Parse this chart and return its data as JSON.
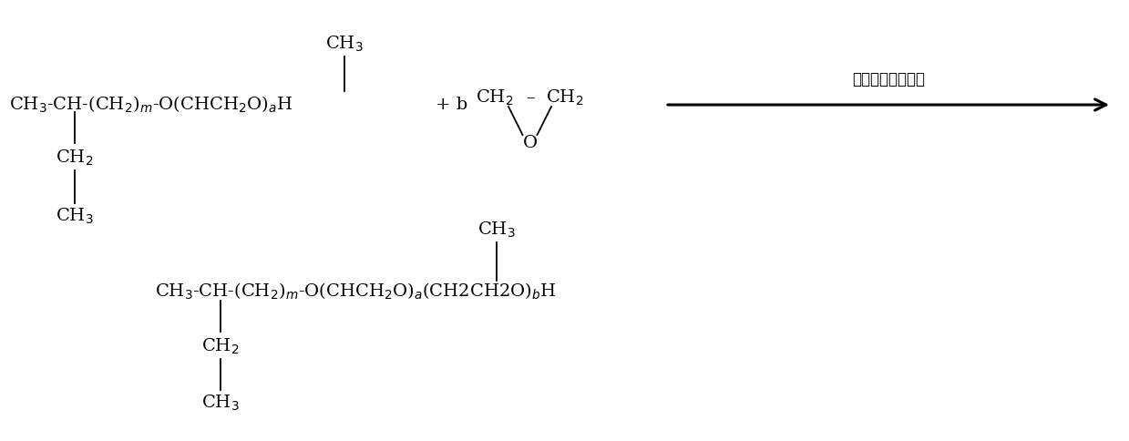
{
  "bg_color": "#ffffff",
  "top_main": "CH$_3$-CH-(CH$_2$)$_m$-O(CHCH$_2$O)$_a$H",
  "top_ch3_above": "CH$_3$",
  "top_ch2_below": "CH$_2$",
  "top_ch3_below2": "CH$_3$",
  "plus_b": "+ b",
  "eo_left": "CH$_2$",
  "eo_dash": "–",
  "eo_right": "CH$_2$",
  "eo_o": "O",
  "arrow_label": "碱土化合物催化剂",
  "bot_main": "CH$_3$-CH-(CH$_2$)$_m$-O(CHCH$_2$O)$_a$(CH2CH2O)$_b$H",
  "bot_ch3_above": "CH$_3$",
  "bot_ch2_below": "CH$_2$",
  "bot_ch3_below2": "CH$_3$"
}
